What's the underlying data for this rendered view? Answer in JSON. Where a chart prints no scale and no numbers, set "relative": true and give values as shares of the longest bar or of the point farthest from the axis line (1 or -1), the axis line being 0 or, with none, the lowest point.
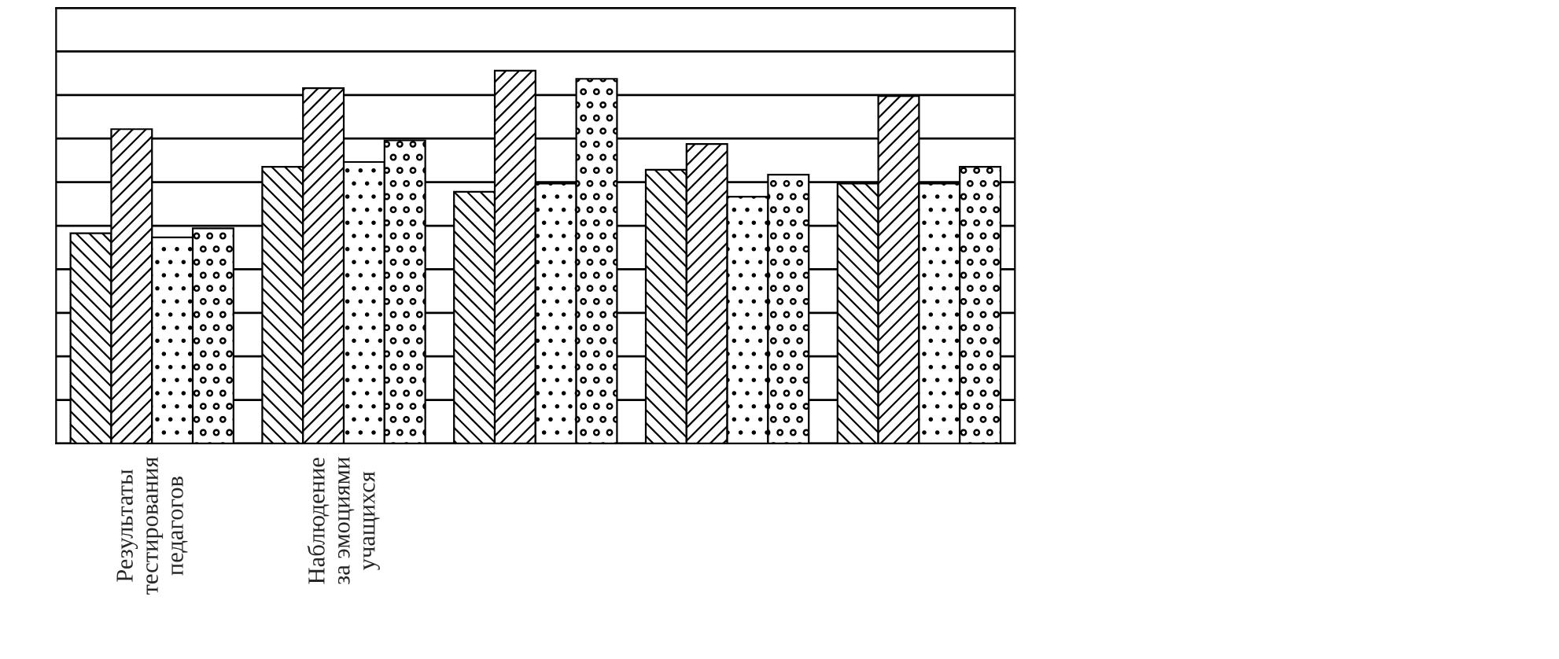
{
  "chart_data": {
    "type": "bar",
    "relative": true,
    "grid": "y",
    "categories": [
      "Результаты\nтестирования\nпедагогов",
      "Наблюдение\nза эмоциями\nучащихся",
      null,
      null,
      null
    ],
    "series": [
      {
        "color": "#000000",
        "values": [
          0.564,
          0.742,
          0.675,
          0.734,
          0.697
        ]
      },
      {
        "color": "#000000",
        "values": [
          0.843,
          0.953,
          1,
          0.803,
          0.932
        ]
      },
      {
        "color": "#000000",
        "values": [
          0.553,
          0.755,
          0.697,
          0.662,
          0.697
        ]
      },
      {
        "color": "#000000",
        "values": [
          0.577,
          0.813,
          0.978,
          0.721,
          0.742
        ]
      }
    ]
  }
}
